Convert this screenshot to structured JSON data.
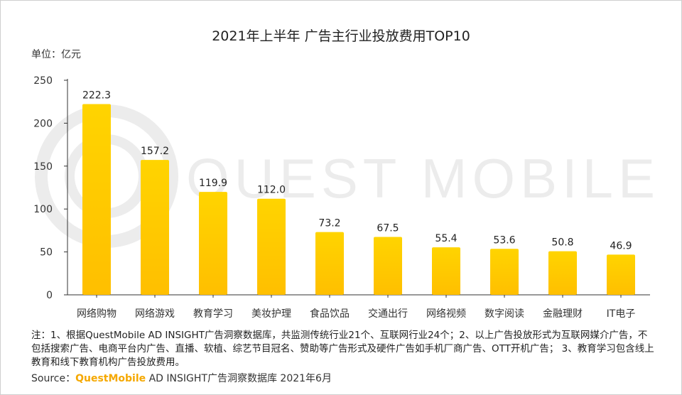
{
  "title": "2021年上半年 广告主行业投放费用TOP10",
  "unit_label": "单位：亿元",
  "watermark": "QUEST MOBILE",
  "note": "注：1、根据QuestMobile AD INSIGHT广告洞察数据库，共监测传统行业21个、互联网行业24个；2、以上广告投放形式为互联网媒介广告，不包括搜索广告、电商平台内广告、直播、软植、综艺节目冠名、赞助等广告形式及硬件广告如手机厂商广告、OTT开机广告； 3、教育学习包含线上教育和线下教育机构广告投放费用。",
  "source": {
    "prefix": "Source：",
    "brand": "QuestMobile",
    "suffix": " AD INSIGHT广告洞察数据库 2021年6月"
  },
  "colors": {
    "bar_top": "#ffd400",
    "bar_bottom": "#ffbf00",
    "axis": "#333333",
    "brand": "#f5a800"
  },
  "chart_data": {
    "type": "bar",
    "categories": [
      "网络购物",
      "网络游戏",
      "教育学习",
      "美妆护理",
      "食品饮品",
      "交通出行",
      "网络视频",
      "数字阅读",
      "金融理财",
      "IT电子"
    ],
    "values": [
      222.3,
      157.2,
      119.9,
      112.0,
      73.2,
      67.5,
      55.4,
      53.6,
      50.8,
      46.9
    ],
    "value_labels": [
      "222.3",
      "157.2",
      "119.9",
      "112.0",
      "73.2",
      "67.5",
      "55.4",
      "53.6",
      "50.8",
      "46.9"
    ],
    "yticks": [
      "0",
      "50",
      "100",
      "150",
      "200",
      "250"
    ],
    "ylim": [
      0,
      250
    ],
    "grid": false
  }
}
